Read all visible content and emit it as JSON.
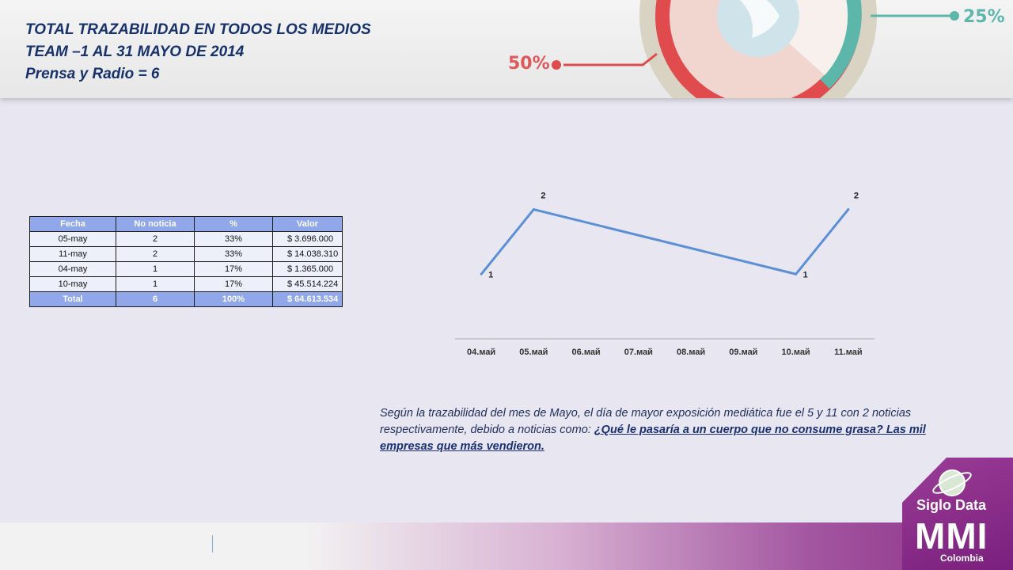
{
  "header": {
    "title_lines": [
      "TOTAL TRAZABILIDAD EN TODOS LOS MEDIOS",
      "TEAM –1 AL 31 MAYO DE 2014",
      "Prensa y Radio = 6"
    ],
    "donut_labels": [
      "50%",
      "25%"
    ]
  },
  "table": {
    "headers": [
      "Fecha",
      "No noticia",
      "%",
      "Valor"
    ],
    "rows": [
      [
        "05-may",
        "2",
        "33%",
        "$ 3.696.000"
      ],
      [
        "11-may",
        "2",
        "33%",
        "$ 14.038.310"
      ],
      [
        "04-may",
        "1",
        "17%",
        "$ 1.365.000"
      ],
      [
        "10-may",
        "1",
        "17%",
        "$ 45.514.224"
      ]
    ],
    "total": [
      "Total",
      "6",
      "100%",
      "$ 64.613.534"
    ]
  },
  "chart_data": {
    "type": "line",
    "categories": [
      "04.май",
      "05.май",
      "06.май",
      "07.май",
      "08.май",
      "09.май",
      "10.май",
      "11.май"
    ],
    "points": [
      {
        "category": "04.май",
        "value": 1
      },
      {
        "category": "05.май",
        "value": 2
      },
      {
        "category": "10.май",
        "value": 1
      },
      {
        "category": "11.май",
        "value": 2
      }
    ],
    "ylim": [
      0,
      2.3
    ],
    "grid": false,
    "line_color": "#5b8fd6"
  },
  "comment": {
    "text": "Según la trazabilidad del mes de Mayo, el día de mayor exposición mediática fue el 5 y 11 con 2 noticias respectivamente, debido a noticias como: ",
    "link": "¿Qué le pasaría a un cuerpo que no consume grasa? Las mil empresas que más vendieron."
  },
  "logo": {
    "brand": "Siglo Data",
    "name": "MMI",
    "country": "Colombia"
  }
}
